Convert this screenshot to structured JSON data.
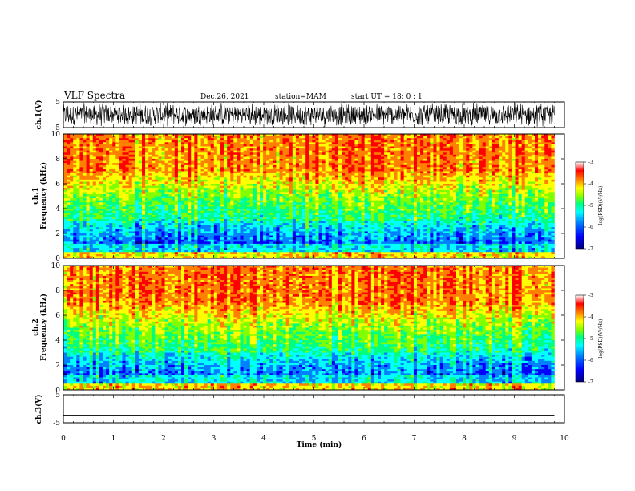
{
  "header": {
    "title": "VLF Spectra",
    "date": "Dec.26, 2021",
    "station": "station=MAM",
    "start": "start UT = 18: 0 : 1"
  },
  "colors": {
    "spectrum_scale": [
      "#00007f",
      "#0000ff",
      "#0080ff",
      "#00ffff",
      "#00ff80",
      "#80ff00",
      "#ffff00",
      "#ff8000",
      "#ff0000",
      "#ffffff"
    ],
    "waveform": "#000000"
  },
  "chart_data": [
    {
      "type": "line",
      "name": "ch1-waveform",
      "ylabel": "ch.1(V)",
      "ylim": [
        -5,
        5
      ],
      "yticks": [
        "5",
        "-5"
      ],
      "xlim": [
        0,
        10
      ],
      "description_values": "dense oscillating waveform filling most of the +/-5 V range"
    },
    {
      "type": "heatmap",
      "name": "ch1-spectrogram",
      "ylabel_line1": "ch.1",
      "ylabel_line2": "Frequency (kHz)",
      "ylim": [
        0,
        10
      ],
      "yticks": [
        "0",
        "2",
        "4",
        "6",
        "8",
        "10"
      ],
      "xlim": [
        0,
        9.8
      ],
      "colorbar": {
        "label": "log(PSD)(V²/Hz)",
        "range": [
          -7,
          -3
        ],
        "ticks": [
          "-3",
          "-4",
          "-5",
          "-6",
          "-7"
        ]
      }
    },
    {
      "type": "heatmap",
      "name": "ch2-spectrogram",
      "ylabel_line1": "ch.2",
      "ylabel_line2": "Frequency (kHz)",
      "ylim": [
        0,
        10
      ],
      "yticks": [
        "0",
        "2",
        "4",
        "6",
        "8",
        "10"
      ],
      "xlim": [
        0,
        9.8
      ],
      "colorbar": {
        "label": "log(PSD)(V²/Hz)",
        "range": [
          -7,
          -3
        ],
        "ticks": [
          "-3",
          "-4",
          "-5",
          "-6",
          "-7"
        ]
      }
    },
    {
      "type": "line",
      "name": "ch3-waveform",
      "ylabel": "ch.3(V)",
      "ylim": [
        -5,
        5
      ],
      "yticks": [
        "5",
        "-5"
      ],
      "xlim": [
        0,
        10
      ],
      "x": [
        0,
        9.8
      ],
      "y": [
        -2.3,
        -2.3
      ]
    }
  ],
  "xaxis": {
    "label": "Time (min)",
    "ticks": [
      "0",
      "1",
      "2",
      "3",
      "4",
      "5",
      "6",
      "7",
      "8",
      "9",
      "10"
    ]
  }
}
